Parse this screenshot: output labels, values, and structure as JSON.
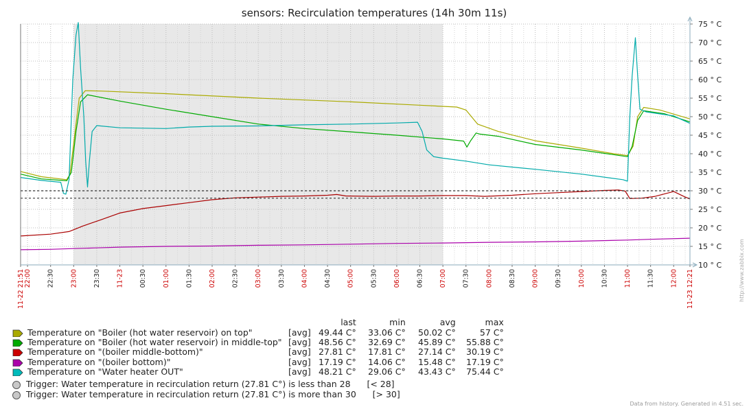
{
  "chart_data": {
    "type": "line",
    "title": "sensors: Recirculation temperatures (14h 30m 11s)",
    "y_unit": "° C",
    "ylim": [
      10,
      75
    ],
    "yticks": [
      10,
      15,
      20,
      25,
      30,
      35,
      40,
      45,
      50,
      55,
      60,
      65,
      70,
      75
    ],
    "grid": true,
    "x_range_hours": [
      21.85,
      36.353
    ],
    "x_tick_labels": [
      {
        "t": 21.85,
        "label": "11-22 21:51",
        "red": true
      },
      {
        "t": 22.0,
        "label": "22:00",
        "red": true
      },
      {
        "t": 22.5,
        "label": "22:30"
      },
      {
        "t": 23.0,
        "label": "23:00",
        "red": true
      },
      {
        "t": 23.5,
        "label": "23:30"
      },
      {
        "t": 24.0,
        "label": "11-23",
        "red": true
      },
      {
        "t": 24.5,
        "label": "00:30"
      },
      {
        "t": 25.0,
        "label": "01:00",
        "red": true
      },
      {
        "t": 25.5,
        "label": "01:30"
      },
      {
        "t": 26.0,
        "label": "02:00",
        "red": true
      },
      {
        "t": 26.5,
        "label": "02:30"
      },
      {
        "t": 27.0,
        "label": "03:00",
        "red": true
      },
      {
        "t": 27.5,
        "label": "03:30"
      },
      {
        "t": 28.0,
        "label": "04:00",
        "red": true
      },
      {
        "t": 28.5,
        "label": "04:30"
      },
      {
        "t": 29.0,
        "label": "05:00",
        "red": true
      },
      {
        "t": 29.5,
        "label": "05:30"
      },
      {
        "t": 30.0,
        "label": "06:00",
        "red": true
      },
      {
        "t": 30.5,
        "label": "06:30"
      },
      {
        "t": 31.0,
        "label": "07:00",
        "red": true
      },
      {
        "t": 31.5,
        "label": "07:30"
      },
      {
        "t": 32.0,
        "label": "08:00",
        "red": true
      },
      {
        "t": 32.5,
        "label": "08:30"
      },
      {
        "t": 33.0,
        "label": "09:00",
        "red": true
      },
      {
        "t": 33.5,
        "label": "09:30"
      },
      {
        "t": 34.0,
        "label": "10:00",
        "red": true
      },
      {
        "t": 34.5,
        "label": "10:30"
      },
      {
        "t": 35.0,
        "label": "11:00",
        "red": true
      },
      {
        "t": 35.5,
        "label": "11:30"
      },
      {
        "t": 36.0,
        "label": "12:00",
        "red": true
      },
      {
        "t": 36.353,
        "label": "11-23 12:21",
        "red": true
      }
    ],
    "night_period_hours": [
      23.0,
      31.0
    ],
    "triggers": [
      28,
      30
    ],
    "series": [
      {
        "name": "Temperature on \"Boiler (hot water reservoir) on top\"",
        "color": "#aaaa00",
        "points": [
          [
            21.85,
            35.2
          ],
          [
            22.3,
            33.8
          ],
          [
            22.85,
            33.0
          ],
          [
            22.92,
            34.5
          ],
          [
            23.05,
            48
          ],
          [
            23.12,
            55
          ],
          [
            23.25,
            57
          ],
          [
            23.6,
            56.9
          ],
          [
            25.0,
            56.2
          ],
          [
            27.0,
            55.0
          ],
          [
            29.0,
            54.0
          ],
          [
            30.5,
            53.1
          ],
          [
            31.3,
            52.6
          ],
          [
            31.5,
            51.8
          ],
          [
            31.75,
            48.0
          ],
          [
            32.2,
            46.0
          ],
          [
            33.0,
            43.5
          ],
          [
            34.0,
            41.5
          ],
          [
            34.7,
            40.0
          ],
          [
            35.0,
            39.5
          ],
          [
            35.12,
            42
          ],
          [
            35.22,
            50
          ],
          [
            35.35,
            52.5
          ],
          [
            35.7,
            51.8
          ],
          [
            36.35,
            49.4
          ]
        ]
      },
      {
        "name": "Temperature on \"Boiler (hot water reservoir) in middle-top\"",
        "color": "#00aa00",
        "points": [
          [
            21.85,
            34.5
          ],
          [
            22.3,
            33.2
          ],
          [
            22.85,
            32.7
          ],
          [
            22.95,
            35
          ],
          [
            23.05,
            46
          ],
          [
            23.15,
            54
          ],
          [
            23.3,
            55.9
          ],
          [
            24.0,
            54.2
          ],
          [
            25.0,
            52.0
          ],
          [
            26.0,
            50.0
          ],
          [
            27.0,
            48.0
          ],
          [
            28.0,
            46.8
          ],
          [
            29.0,
            45.9
          ],
          [
            30.0,
            45.0
          ],
          [
            31.0,
            44.0
          ],
          [
            31.45,
            43.4
          ],
          [
            31.52,
            41.8
          ],
          [
            31.6,
            43.5
          ],
          [
            31.72,
            45.6
          ],
          [
            31.8,
            45.3
          ],
          [
            32.2,
            44.7
          ],
          [
            33.0,
            42.5
          ],
          [
            34.0,
            41.0
          ],
          [
            35.0,
            39.2
          ],
          [
            35.1,
            42
          ],
          [
            35.22,
            49
          ],
          [
            35.35,
            51.6
          ],
          [
            35.8,
            50.8
          ],
          [
            36.35,
            48.6
          ]
        ]
      },
      {
        "name": "Temperature on \"(boiler middle-bottom)\"",
        "color": "#aa0000",
        "points": [
          [
            21.85,
            17.8
          ],
          [
            22.5,
            18.3
          ],
          [
            22.9,
            19.0
          ],
          [
            23.2,
            20.5
          ],
          [
            23.6,
            22.2
          ],
          [
            24.0,
            24.0
          ],
          [
            24.5,
            25.2
          ],
          [
            25.0,
            26.0
          ],
          [
            25.5,
            26.8
          ],
          [
            26.0,
            27.6
          ],
          [
            26.5,
            28.1
          ],
          [
            27.0,
            28.3
          ],
          [
            27.5,
            28.5
          ],
          [
            28.0,
            28.6
          ],
          [
            28.5,
            28.8
          ],
          [
            28.7,
            29.0
          ],
          [
            28.9,
            28.6
          ],
          [
            29.5,
            28.5
          ],
          [
            30.0,
            28.6
          ],
          [
            30.5,
            28.6
          ],
          [
            31.0,
            28.7
          ],
          [
            31.5,
            28.7
          ],
          [
            31.9,
            28.5
          ],
          [
            32.1,
            28.6
          ],
          [
            32.5,
            28.8
          ],
          [
            33.0,
            29.2
          ],
          [
            33.5,
            29.5
          ],
          [
            34.0,
            29.8
          ],
          [
            34.5,
            30.1
          ],
          [
            34.8,
            30.2
          ],
          [
            34.95,
            29.9
          ],
          [
            35.05,
            27.9
          ],
          [
            35.3,
            28.0
          ],
          [
            35.6,
            28.5
          ],
          [
            36.0,
            29.8
          ],
          [
            36.2,
            28.6
          ],
          [
            36.35,
            27.8
          ]
        ]
      },
      {
        "name": "Temperature on \"(boiler bottom)\"",
        "color": "#aa00aa",
        "points": [
          [
            21.85,
            14.1
          ],
          [
            22.5,
            14.2
          ],
          [
            23.0,
            14.4
          ],
          [
            23.5,
            14.6
          ],
          [
            24.0,
            14.8
          ],
          [
            25.0,
            15.0
          ],
          [
            26.0,
            15.1
          ],
          [
            27.0,
            15.3
          ],
          [
            28.0,
            15.4
          ],
          [
            29.0,
            15.6
          ],
          [
            30.0,
            15.8
          ],
          [
            31.0,
            15.9
          ],
          [
            32.0,
            16.1
          ],
          [
            33.0,
            16.2
          ],
          [
            34.0,
            16.4
          ],
          [
            35.0,
            16.7
          ],
          [
            35.5,
            16.9
          ],
          [
            36.35,
            17.2
          ]
        ]
      },
      {
        "name": "Temperature on \"Water heater OUT\"",
        "color": "#00aaaa",
        "points": [
          [
            21.85,
            33.6
          ],
          [
            22.3,
            32.8
          ],
          [
            22.72,
            32.3
          ],
          [
            22.78,
            29.3
          ],
          [
            22.83,
            29.1
          ],
          [
            22.9,
            33
          ],
          [
            22.98,
            60
          ],
          [
            23.05,
            72
          ],
          [
            23.1,
            75.4
          ],
          [
            23.15,
            63
          ],
          [
            23.22,
            50
          ],
          [
            23.26,
            38
          ],
          [
            23.3,
            31
          ],
          [
            23.34,
            38
          ],
          [
            23.4,
            46
          ],
          [
            23.5,
            47.6
          ],
          [
            24.0,
            47.0
          ],
          [
            25.0,
            46.8
          ],
          [
            25.5,
            47.2
          ],
          [
            26.0,
            47.4
          ],
          [
            27.0,
            47.5
          ],
          [
            28.0,
            47.8
          ],
          [
            29.0,
            48.0
          ],
          [
            30.0,
            48.3
          ],
          [
            30.45,
            48.5
          ],
          [
            30.55,
            46
          ],
          [
            30.65,
            41
          ],
          [
            30.8,
            39.2
          ],
          [
            31.0,
            38.8
          ],
          [
            31.5,
            38.0
          ],
          [
            32.0,
            37.0
          ],
          [
            33.0,
            35.8
          ],
          [
            34.0,
            34.5
          ],
          [
            34.9,
            33.0
          ],
          [
            35.0,
            32.6
          ],
          [
            35.05,
            50
          ],
          [
            35.1,
            61
          ],
          [
            35.17,
            71.3
          ],
          [
            35.22,
            61
          ],
          [
            35.27,
            52
          ],
          [
            35.4,
            51.3
          ],
          [
            36.0,
            50.2
          ],
          [
            36.35,
            48.2
          ]
        ]
      }
    ]
  },
  "legend": {
    "headers": {
      "last": "last",
      "min": "min",
      "avg": "avg",
      "max": "max"
    },
    "rows": [
      {
        "name": "Temperature on \"Boiler (hot water reservoir) on top\"",
        "func": "[avg]",
        "last": "49.44 C°",
        "min": "33.06 C°",
        "avg": "50.02 C°",
        "max": "57 C°",
        "color": "#aaaa00"
      },
      {
        "name": "Temperature on \"Boiler (hot water reservoir) in middle-top\"",
        "func": "[avg]",
        "last": "48.56 C°",
        "min": "32.69 C°",
        "avg": "45.89 C°",
        "max": "55.88 C°",
        "color": "#00aa00"
      },
      {
        "name": "Temperature on \"(boiler middle-bottom)\"",
        "func": "[avg]",
        "last": "27.81 C°",
        "min": "17.81 C°",
        "avg": "27.14 C°",
        "max": "30.19 C°",
        "color": "#cc0000"
      },
      {
        "name": "Temperature on \"(boiler bottom)\"",
        "func": "[avg]",
        "last": "17.19 C°",
        "min": "14.06 C°",
        "avg": "15.48 C°",
        "max": "17.19 C°",
        "color": "#aa00aa"
      },
      {
        "name": "Temperature on \"Water heater OUT\"",
        "func": "[avg]",
        "last": "48.21 C°",
        "min": "29.06 C°",
        "avg": "43.43 C°",
        "max": "75.44 C°",
        "color": "#00bbbb"
      }
    ]
  },
  "triggers_legend": [
    {
      "text": "Trigger: Water temperature in recirculation return (27.81 C°) is less than 28",
      "cond": "[< 28]"
    },
    {
      "text": "Trigger: Water temperature in recirculation return (27.81 C°) is more than 30",
      "cond": "[> 30]"
    }
  ],
  "footer": "Data from history. Generated in 4.51 sec.",
  "watermark": "http://www.zabbix.com"
}
